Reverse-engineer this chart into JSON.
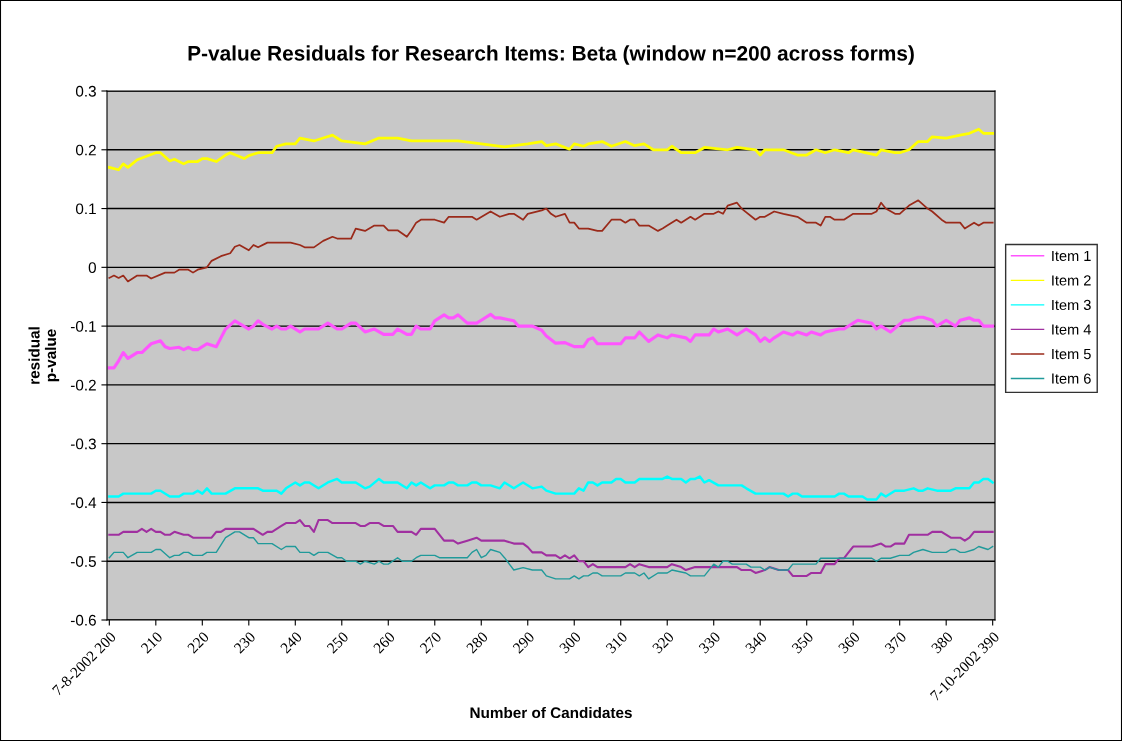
{
  "chart_data": {
    "type": "line",
    "title": "P-value Residuals for Research Items: Beta (window n=200 across forms)",
    "xlabel": "Number of Candidates",
    "ylabel": "residual\np-value",
    "xlim": [
      199.5,
      390.5
    ],
    "xticks": [
      {
        "value": 200,
        "label": "7-8-2002 200"
      },
      210,
      220,
      230,
      240,
      250,
      260,
      270,
      280,
      290,
      300,
      310,
      320,
      330,
      340,
      350,
      360,
      370,
      380,
      {
        "value": 390,
        "label": "7-10-2002 390"
      }
    ],
    "ylim": [
      -0.6,
      0.3
    ],
    "yticks": [
      -0.6,
      -0.5,
      -0.4,
      -0.3,
      -0.2,
      -0.1,
      0,
      0.1,
      0.2,
      0.3
    ],
    "grid": "y",
    "legend": "right",
    "marker": "none",
    "line_style": "solid",
    "series": [
      {
        "name": "Item 1",
        "color": "#ff55ff",
        "x": [
          200,
          201,
          202,
          203,
          204,
          206,
          207,
          209,
          211,
          212,
          213,
          215,
          216,
          217,
          218,
          219,
          221,
          223,
          224,
          225,
          227,
          230,
          231,
          232,
          233,
          235,
          236,
          237,
          238,
          239,
          241,
          242,
          245,
          247,
          249,
          250,
          252,
          253,
          255,
          257,
          259,
          261,
          262,
          264,
          265,
          266,
          267,
          269,
          270,
          272,
          273,
          274,
          275,
          277,
          279,
          280,
          282,
          283,
          284,
          287,
          288,
          291,
          293,
          294,
          296,
          298,
          300,
          302,
          303,
          304,
          305,
          308,
          310,
          311,
          313,
          314,
          316,
          318,
          320,
          321,
          324,
          325,
          326,
          329,
          330,
          331,
          333,
          335,
          337,
          339,
          340,
          341,
          342,
          343,
          345,
          347,
          348,
          350,
          351,
          353,
          354,
          357,
          358,
          360,
          361,
          364,
          365,
          366,
          368,
          371,
          372,
          374,
          375,
          377,
          378,
          380,
          382,
          383,
          385,
          386,
          387,
          388,
          390
        ],
        "values": [
          -0.171,
          -0.171,
          -0.159,
          -0.145,
          -0.155,
          -0.145,
          -0.145,
          -0.13,
          -0.125,
          -0.135,
          -0.138,
          -0.136,
          -0.14,
          -0.136,
          -0.14,
          -0.14,
          -0.13,
          -0.135,
          -0.12,
          -0.105,
          -0.091,
          -0.105,
          -0.1,
          -0.091,
          -0.097,
          -0.105,
          -0.1,
          -0.105,
          -0.105,
          -0.1,
          -0.11,
          -0.105,
          -0.105,
          -0.095,
          -0.105,
          -0.105,
          -0.095,
          -0.095,
          -0.11,
          -0.105,
          -0.114,
          -0.114,
          -0.105,
          -0.114,
          -0.114,
          -0.1,
          -0.105,
          -0.105,
          -0.091,
          -0.081,
          -0.086,
          -0.086,
          -0.081,
          -0.095,
          -0.095,
          -0.09,
          -0.08,
          -0.086,
          -0.086,
          -0.091,
          -0.1,
          -0.1,
          -0.107,
          -0.117,
          -0.129,
          -0.128,
          -0.135,
          -0.135,
          -0.123,
          -0.12,
          -0.13,
          -0.13,
          -0.13,
          -0.12,
          -0.12,
          -0.11,
          -0.126,
          -0.115,
          -0.12,
          -0.115,
          -0.12,
          -0.126,
          -0.115,
          -0.115,
          -0.105,
          -0.11,
          -0.105,
          -0.115,
          -0.105,
          -0.115,
          -0.126,
          -0.12,
          -0.126,
          -0.12,
          -0.11,
          -0.115,
          -0.11,
          -0.115,
          -0.11,
          -0.115,
          -0.11,
          -0.105,
          -0.105,
          -0.095,
          -0.09,
          -0.095,
          -0.105,
          -0.1,
          -0.11,
          -0.09,
          -0.09,
          -0.085,
          -0.085,
          -0.09,
          -0.1,
          -0.09,
          -0.1,
          -0.09,
          -0.086,
          -0.09,
          -0.09,
          -0.1,
          -0.1
        ]
      },
      {
        "name": "Item 2",
        "color": "#ffff00",
        "x": [
          200,
          202,
          203,
          204,
          206,
          208,
          210,
          211,
          213,
          214,
          216,
          217,
          219,
          220,
          221,
          223,
          225,
          226,
          229,
          230,
          232,
          235,
          236,
          238,
          240,
          241,
          244,
          246,
          248,
          250,
          255,
          258,
          262,
          265,
          270,
          275,
          280,
          285,
          290,
          293,
          294,
          296,
          299,
          300,
          302,
          303,
          306,
          308,
          311,
          313,
          315,
          317,
          320,
          321,
          323,
          326,
          328,
          333,
          335,
          339,
          340,
          341,
          345,
          348,
          350,
          352,
          354,
          356,
          359,
          360,
          365,
          366,
          369,
          370,
          372,
          374,
          376,
          377,
          380,
          383,
          385,
          387,
          388,
          390
        ],
        "values": [
          0.17,
          0.166,
          0.176,
          0.17,
          0.183,
          0.189,
          0.195,
          0.195,
          0.181,
          0.184,
          0.176,
          0.18,
          0.18,
          0.185,
          0.185,
          0.18,
          0.191,
          0.195,
          0.185,
          0.19,
          0.195,
          0.195,
          0.206,
          0.21,
          0.21,
          0.22,
          0.215,
          0.22,
          0.225,
          0.215,
          0.21,
          0.22,
          0.22,
          0.215,
          0.215,
          0.215,
          0.21,
          0.205,
          0.21,
          0.214,
          0.207,
          0.21,
          0.201,
          0.21,
          0.206,
          0.21,
          0.214,
          0.206,
          0.214,
          0.207,
          0.21,
          0.2,
          0.2,
          0.206,
          0.195,
          0.195,
          0.204,
          0.2,
          0.204,
          0.2,
          0.191,
          0.2,
          0.2,
          0.191,
          0.191,
          0.2,
          0.195,
          0.2,
          0.195,
          0.2,
          0.191,
          0.2,
          0.195,
          0.195,
          0.2,
          0.214,
          0.214,
          0.222,
          0.22,
          0.225,
          0.228,
          0.235,
          0.228,
          0.228
        ]
      },
      {
        "name": "Item 3",
        "color": "#00ffff",
        "x": [
          200,
          202,
          203,
          209,
          210,
          211,
          213,
          215,
          216,
          218,
          219,
          220,
          221,
          222,
          225,
          227,
          232,
          233,
          236,
          237,
          238,
          240,
          241,
          242,
          243,
          245,
          247,
          249,
          250,
          253,
          255,
          256,
          258,
          259,
          262,
          264,
          265,
          266,
          267,
          269,
          270,
          272,
          273,
          274,
          275,
          277,
          278,
          279,
          280,
          282,
          284,
          285,
          287,
          289,
          291,
          293,
          294,
          296,
          300,
          301,
          302,
          303,
          304,
          305,
          306,
          308,
          309,
          310,
          311,
          313,
          314,
          319,
          320,
          321,
          323,
          324,
          325,
          326,
          327,
          328,
          329,
          331,
          336,
          337,
          339,
          345,
          346,
          347,
          348,
          349,
          356,
          357,
          358,
          359,
          362,
          363,
          365,
          366,
          367,
          369,
          371,
          373,
          374,
          375,
          376,
          378,
          381,
          382,
          385,
          386,
          387,
          388,
          389,
          390
        ],
        "values": [
          -0.39,
          -0.39,
          -0.385,
          -0.385,
          -0.38,
          -0.38,
          -0.39,
          -0.39,
          -0.385,
          -0.385,
          -0.38,
          -0.385,
          -0.376,
          -0.385,
          -0.385,
          -0.376,
          -0.376,
          -0.38,
          -0.38,
          -0.385,
          -0.376,
          -0.366,
          -0.371,
          -0.366,
          -0.366,
          -0.376,
          -0.366,
          -0.36,
          -0.366,
          -0.366,
          -0.376,
          -0.373,
          -0.36,
          -0.366,
          -0.366,
          -0.376,
          -0.366,
          -0.371,
          -0.366,
          -0.376,
          -0.371,
          -0.371,
          -0.366,
          -0.366,
          -0.371,
          -0.371,
          -0.366,
          -0.366,
          -0.371,
          -0.371,
          -0.376,
          -0.366,
          -0.376,
          -0.366,
          -0.376,
          -0.373,
          -0.38,
          -0.385,
          -0.385,
          -0.376,
          -0.38,
          -0.366,
          -0.366,
          -0.371,
          -0.366,
          -0.366,
          -0.36,
          -0.36,
          -0.366,
          -0.366,
          -0.36,
          -0.36,
          -0.356,
          -0.36,
          -0.36,
          -0.366,
          -0.36,
          -0.36,
          -0.356,
          -0.366,
          -0.362,
          -0.371,
          -0.371,
          -0.376,
          -0.385,
          -0.385,
          -0.39,
          -0.385,
          -0.385,
          -0.39,
          -0.39,
          -0.385,
          -0.385,
          -0.39,
          -0.39,
          -0.395,
          -0.395,
          -0.385,
          -0.39,
          -0.38,
          -0.38,
          -0.376,
          -0.38,
          -0.38,
          -0.376,
          -0.38,
          -0.38,
          -0.376,
          -0.376,
          -0.366,
          -0.366,
          -0.36,
          -0.36,
          -0.366
        ]
      },
      {
        "name": "Item 4",
        "color": "#a030a0",
        "x": [
          200,
          202,
          203,
          206,
          207,
          208,
          209,
          210,
          211,
          212,
          213,
          214,
          216,
          217,
          218,
          222,
          223,
          224,
          225,
          231,
          233,
          234,
          235,
          237,
          238,
          240,
          241,
          242,
          243,
          244,
          245,
          247,
          248,
          253,
          254,
          255,
          256,
          258,
          259,
          260,
          261,
          262,
          265,
          266,
          267,
          270,
          272,
          274,
          275,
          277,
          279,
          280,
          285,
          287,
          289,
          290,
          291,
          293,
          294,
          296,
          297,
          298,
          299,
          300,
          301,
          302,
          303,
          304,
          305,
          311,
          312,
          313,
          314,
          316,
          320,
          321,
          323,
          324,
          326,
          335,
          336,
          338,
          339,
          341,
          342,
          344,
          346,
          347,
          350,
          351,
          353,
          354,
          356,
          357,
          358,
          359,
          360,
          364,
          366,
          367,
          368,
          369,
          371,
          372,
          376,
          377,
          379,
          381,
          383,
          384,
          385,
          386,
          390
        ],
        "values": [
          -0.455,
          -0.455,
          -0.45,
          -0.45,
          -0.445,
          -0.45,
          -0.445,
          -0.45,
          -0.45,
          -0.455,
          -0.455,
          -0.45,
          -0.455,
          -0.455,
          -0.46,
          -0.46,
          -0.45,
          -0.45,
          -0.445,
          -0.445,
          -0.455,
          -0.45,
          -0.45,
          -0.44,
          -0.435,
          -0.435,
          -0.43,
          -0.44,
          -0.44,
          -0.45,
          -0.43,
          -0.43,
          -0.435,
          -0.435,
          -0.44,
          -0.44,
          -0.435,
          -0.435,
          -0.44,
          -0.44,
          -0.44,
          -0.45,
          -0.45,
          -0.455,
          -0.445,
          -0.445,
          -0.465,
          -0.465,
          -0.47,
          -0.465,
          -0.46,
          -0.465,
          -0.465,
          -0.47,
          -0.47,
          -0.476,
          -0.485,
          -0.485,
          -0.49,
          -0.49,
          -0.495,
          -0.49,
          -0.495,
          -0.49,
          -0.5,
          -0.5,
          -0.51,
          -0.505,
          -0.51,
          -0.51,
          -0.505,
          -0.51,
          -0.505,
          -0.51,
          -0.51,
          -0.505,
          -0.51,
          -0.515,
          -0.51,
          -0.51,
          -0.515,
          -0.515,
          -0.52,
          -0.515,
          -0.51,
          -0.515,
          -0.515,
          -0.525,
          -0.525,
          -0.52,
          -0.52,
          -0.505,
          -0.505,
          -0.495,
          -0.495,
          -0.485,
          -0.475,
          -0.475,
          -0.47,
          -0.475,
          -0.475,
          -0.47,
          -0.47,
          -0.455,
          -0.455,
          -0.45,
          -0.45,
          -0.46,
          -0.46,
          -0.465,
          -0.46,
          -0.45,
          -0.45
        ]
      },
      {
        "name": "Item 5",
        "color": "#9a2a1a",
        "x": [
          200,
          201,
          202,
          203,
          204,
          206,
          208,
          209,
          212,
          214,
          215,
          217,
          218,
          219,
          221,
          222,
          224,
          226,
          227,
          228,
          230,
          231,
          232,
          234,
          239,
          241,
          242,
          244,
          246,
          248,
          249,
          252,
          253,
          255,
          257,
          259,
          260,
          262,
          264,
          265,
          266,
          267,
          270,
          272,
          273,
          278,
          279,
          282,
          284,
          286,
          287,
          288,
          289,
          290,
          293,
          294,
          295,
          296,
          298,
          299,
          300,
          301,
          303,
          305,
          306,
          308,
          310,
          311,
          312,
          313,
          314,
          316,
          318,
          319,
          320,
          322,
          323,
          325,
          326,
          328,
          330,
          331,
          332,
          333,
          335,
          336,
          339,
          340,
          341,
          343,
          345,
          348,
          350,
          352,
          353,
          354,
          355,
          356,
          358,
          360,
          364,
          365,
          366,
          367,
          369,
          370,
          372,
          374,
          376,
          377,
          379,
          380,
          383,
          384,
          386,
          387,
          388,
          390
        ],
        "values": [
          -0.018,
          -0.014,
          -0.018,
          -0.014,
          -0.024,
          -0.014,
          -0.014,
          -0.019,
          -0.009,
          -0.009,
          -0.004,
          -0.004,
          -0.009,
          -0.004,
          0,
          0.011,
          0.019,
          0.024,
          0.035,
          0.038,
          0.029,
          0.038,
          0.034,
          0.042,
          0.042,
          0.038,
          0.034,
          0.034,
          0.045,
          0.052,
          0.049,
          0.049,
          0.066,
          0.062,
          0.071,
          0.071,
          0.063,
          0.063,
          0.052,
          0.063,
          0.076,
          0.081,
          0.081,
          0.076,
          0.086,
          0.086,
          0.081,
          0.095,
          0.086,
          0.091,
          0.091,
          0.086,
          0.081,
          0.091,
          0.097,
          0.1,
          0.091,
          0.086,
          0.091,
          0.076,
          0.076,
          0.066,
          0.066,
          0.062,
          0.062,
          0.081,
          0.081,
          0.076,
          0.081,
          0.081,
          0.071,
          0.071,
          0.062,
          0.066,
          0.071,
          0.081,
          0.076,
          0.086,
          0.081,
          0.091,
          0.091,
          0.095,
          0.091,
          0.105,
          0.11,
          0.1,
          0.081,
          0.086,
          0.086,
          0.095,
          0.091,
          0.086,
          0.076,
          0.076,
          0.071,
          0.086,
          0.086,
          0.081,
          0.081,
          0.091,
          0.091,
          0.095,
          0.11,
          0.1,
          0.091,
          0.091,
          0.105,
          0.114,
          0.1,
          0.095,
          0.081,
          0.076,
          0.076,
          0.066,
          0.076,
          0.071,
          0.076,
          0.076
        ]
      },
      {
        "name": "Item 6",
        "color": "#209a9a",
        "x": [
          200,
          201,
          203,
          204,
          206,
          209,
          210,
          211,
          213,
          214,
          215,
          216,
          217,
          218,
          220,
          221,
          223,
          225,
          227,
          228,
          230,
          231,
          232,
          235,
          237,
          238,
          240,
          241,
          243,
          244,
          245,
          247,
          249,
          250,
          251,
          253,
          254,
          255,
          257,
          258,
          259,
          260,
          262,
          263,
          265,
          266,
          267,
          270,
          271,
          277,
          278,
          279,
          280,
          281,
          282,
          284,
          285,
          287,
          289,
          291,
          293,
          294,
          296,
          299,
          300,
          301,
          302,
          303,
          304,
          305,
          306,
          310,
          311,
          313,
          314,
          315,
          316,
          318,
          320,
          321,
          324,
          325,
          328,
          330,
          331,
          332,
          333,
          334,
          337,
          338,
          340,
          341,
          342,
          344,
          346,
          347,
          352,
          353,
          364,
          365,
          366,
          368,
          370,
          372,
          373,
          375,
          377,
          380,
          381,
          382,
          383,
          384,
          386,
          387,
          389,
          390
        ],
        "values": [
          -0.494,
          -0.485,
          -0.485,
          -0.494,
          -0.485,
          -0.485,
          -0.48,
          -0.48,
          -0.494,
          -0.49,
          -0.49,
          -0.485,
          -0.485,
          -0.49,
          -0.49,
          -0.485,
          -0.485,
          -0.46,
          -0.45,
          -0.45,
          -0.46,
          -0.46,
          -0.47,
          -0.47,
          -0.48,
          -0.475,
          -0.475,
          -0.485,
          -0.485,
          -0.49,
          -0.485,
          -0.485,
          -0.494,
          -0.494,
          -0.5,
          -0.5,
          -0.505,
          -0.5,
          -0.505,
          -0.5,
          -0.505,
          -0.505,
          -0.494,
          -0.5,
          -0.5,
          -0.494,
          -0.49,
          -0.49,
          -0.494,
          -0.494,
          -0.485,
          -0.48,
          -0.494,
          -0.49,
          -0.48,
          -0.485,
          -0.494,
          -0.515,
          -0.511,
          -0.515,
          -0.515,
          -0.525,
          -0.53,
          -0.53,
          -0.525,
          -0.53,
          -0.525,
          -0.525,
          -0.52,
          -0.52,
          -0.525,
          -0.525,
          -0.52,
          -0.52,
          -0.525,
          -0.52,
          -0.53,
          -0.52,
          -0.52,
          -0.515,
          -0.52,
          -0.525,
          -0.525,
          -0.505,
          -0.51,
          -0.5,
          -0.5,
          -0.505,
          -0.505,
          -0.51,
          -0.51,
          -0.515,
          -0.51,
          -0.515,
          -0.515,
          -0.505,
          -0.505,
          -0.495,
          -0.495,
          -0.5,
          -0.495,
          -0.495,
          -0.49,
          -0.49,
          -0.485,
          -0.48,
          -0.485,
          -0.485,
          -0.48,
          -0.48,
          -0.485,
          -0.485,
          -0.48,
          -0.475,
          -0.48,
          -0.475
        ]
      }
    ]
  }
}
